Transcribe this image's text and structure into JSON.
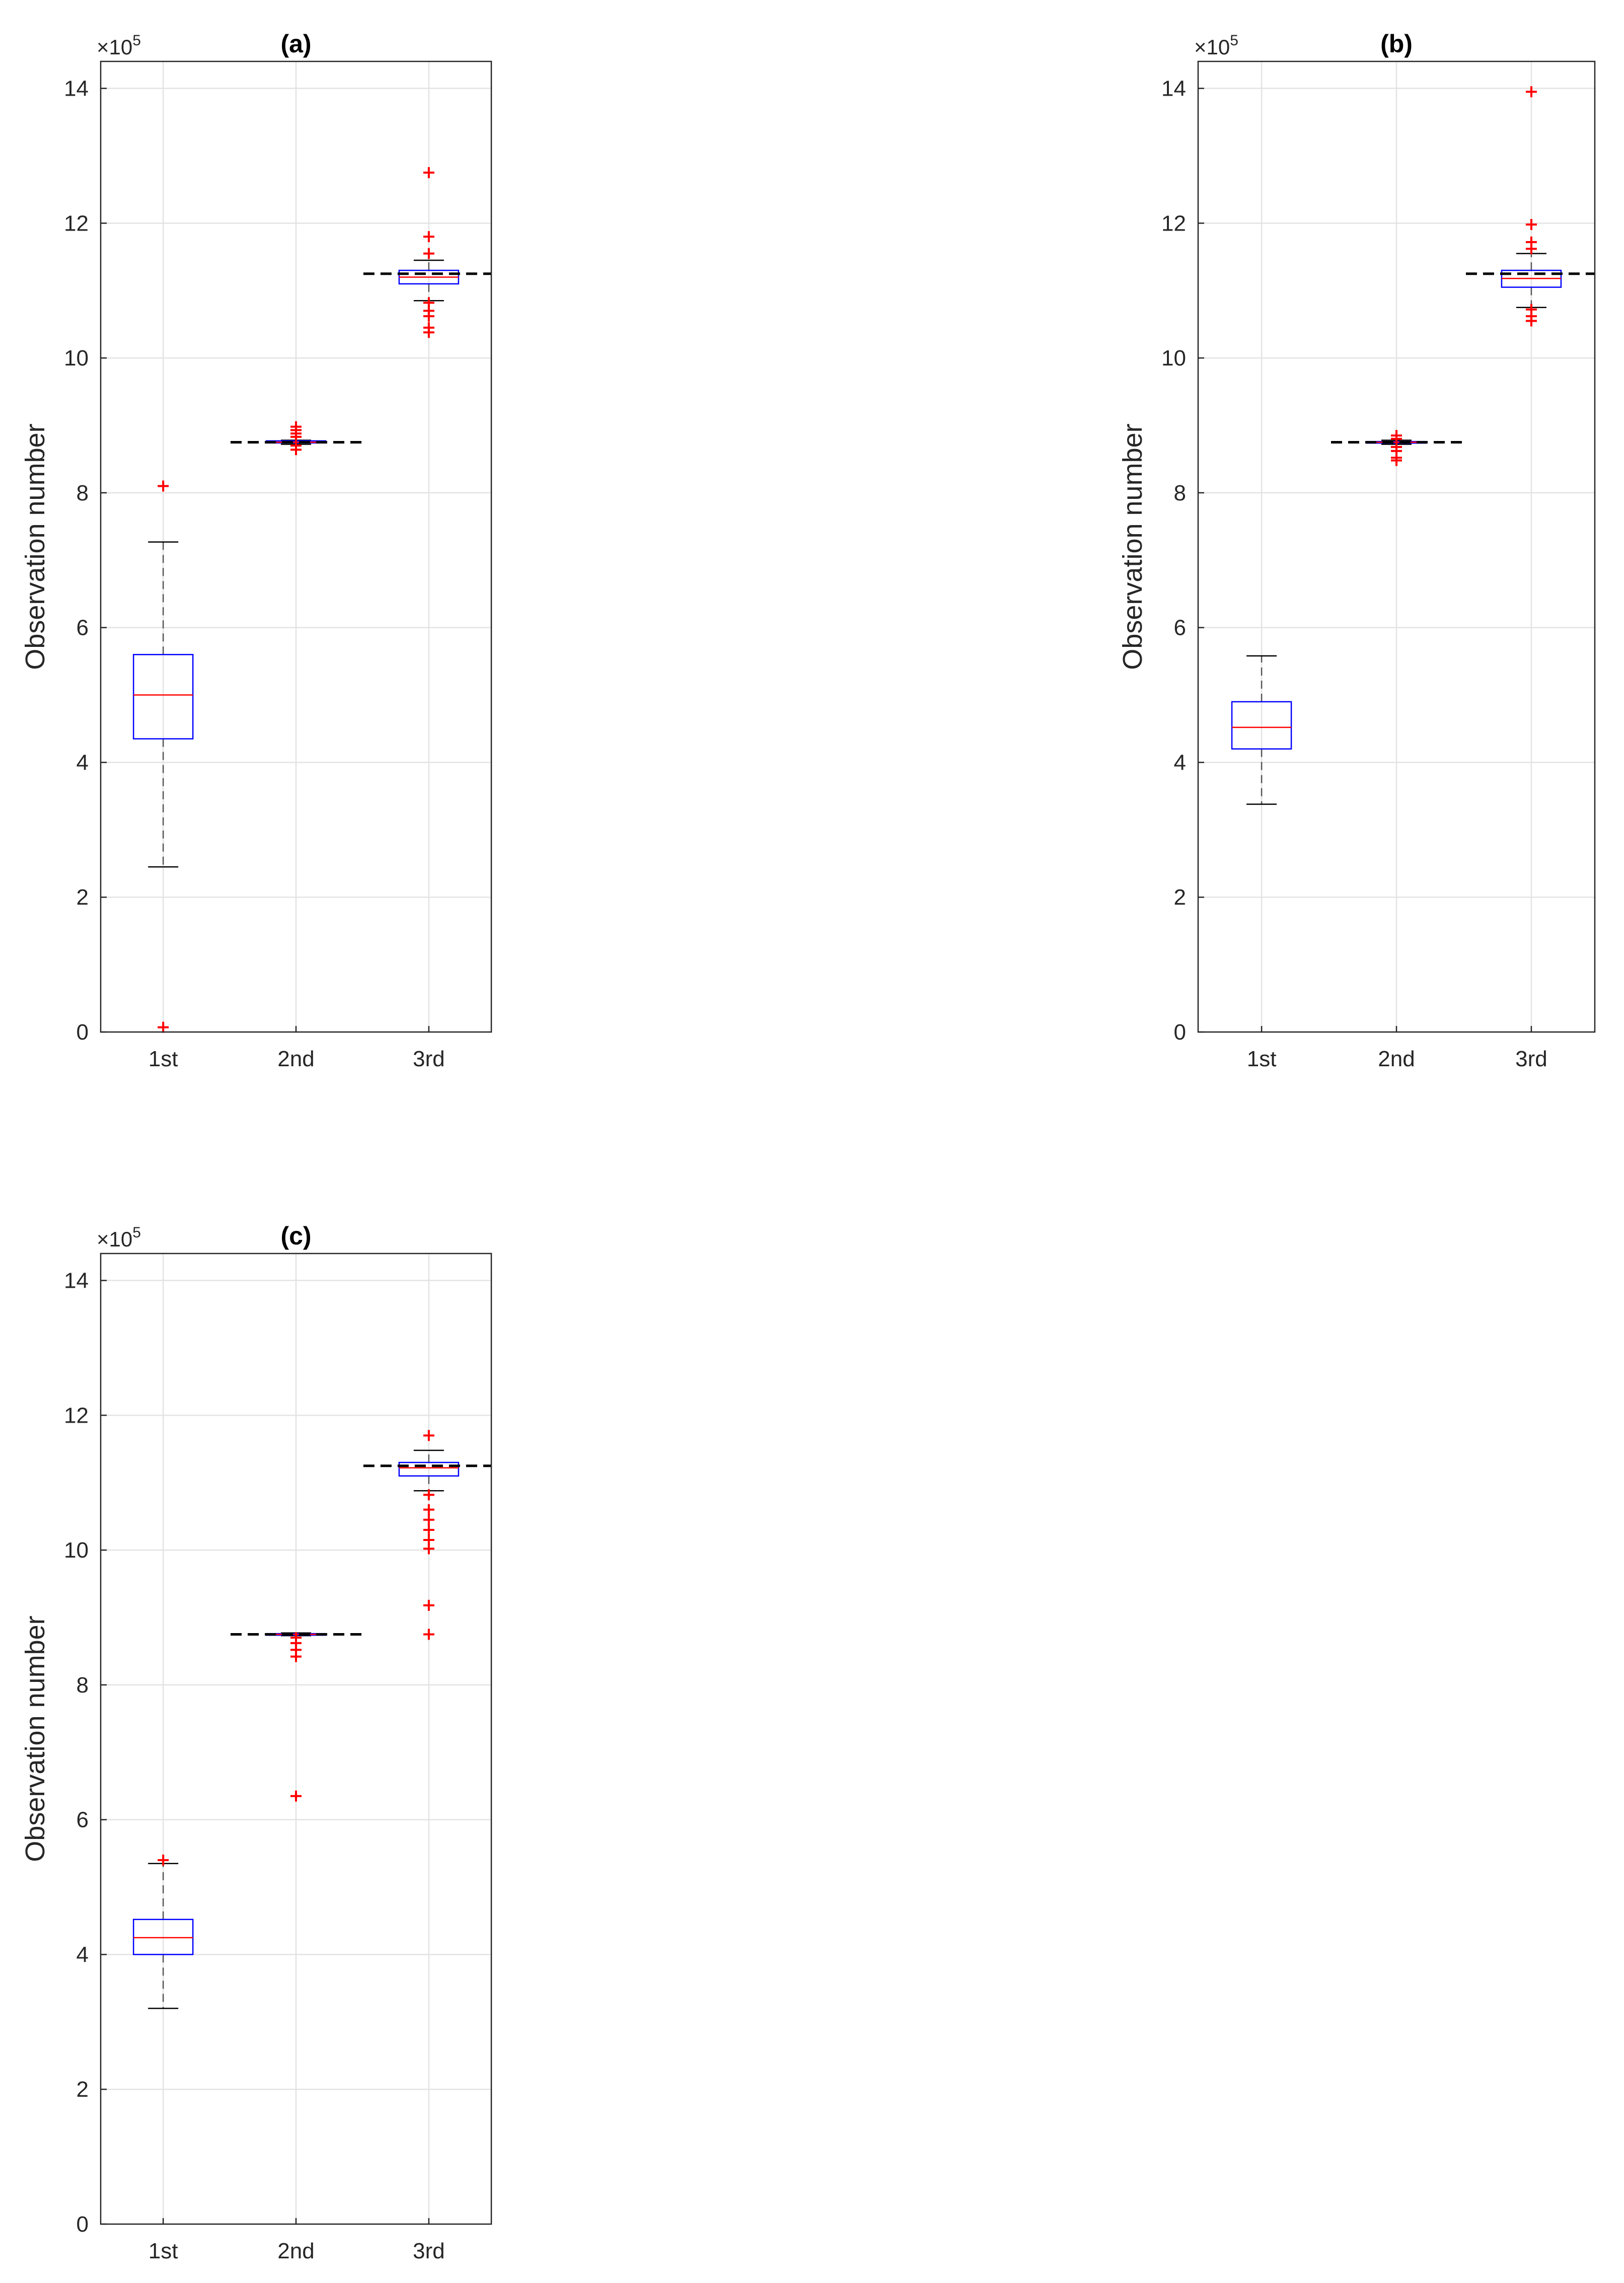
{
  "chart_data": [
    {
      "type": "box",
      "title": "(a)",
      "xlabel": "",
      "ylabel": "Observation number",
      "exponent_label": "×10",
      "exponent_power": "5",
      "categories": [
        "1st",
        "2nd",
        "3rd"
      ],
      "ylim": [
        0,
        14.4
      ],
      "yticks": [
        "0",
        "2",
        "4",
        "6",
        "8",
        "10",
        "12",
        "14"
      ],
      "grid": true,
      "reference_lines": [
        8.75,
        11.25
      ],
      "boxes": [
        {
          "category": "1st",
          "whisker_low": 2.45,
          "q1": 4.35,
          "median": 5.0,
          "q3": 5.6,
          "whisker_high": 7.27,
          "outliers": [
            8.1,
            0.07
          ]
        },
        {
          "category": "2nd",
          "whisker_low": 8.72,
          "q1": 8.74,
          "median": 8.75,
          "q3": 8.77,
          "whisker_high": 8.78,
          "outliers": [
            8.98,
            8.93,
            8.88,
            8.83,
            8.7,
            8.64
          ]
        },
        {
          "category": "3rd",
          "whisker_low": 10.85,
          "q1": 11.1,
          "median": 11.2,
          "q3": 11.3,
          "whisker_high": 11.45,
          "outliers": [
            12.75,
            11.8,
            11.55,
            10.82,
            10.7,
            10.62,
            10.45,
            10.38
          ]
        }
      ]
    },
    {
      "type": "box",
      "title": "(b)",
      "xlabel": "",
      "ylabel": "Observation number",
      "exponent_label": "×10",
      "exponent_power": "5",
      "categories": [
        "1st",
        "2nd",
        "3rd"
      ],
      "ylim": [
        0,
        14.4
      ],
      "yticks": [
        "0",
        "2",
        "4",
        "6",
        "8",
        "10",
        "12",
        "14"
      ],
      "grid": true,
      "reference_lines": [
        8.75,
        11.25
      ],
      "boxes": [
        {
          "category": "1st",
          "whisker_low": 3.38,
          "q1": 4.2,
          "median": 4.52,
          "q3": 4.9,
          "whisker_high": 5.58,
          "outliers": []
        },
        {
          "category": "2nd",
          "whisker_low": 8.72,
          "q1": 8.74,
          "median": 8.75,
          "q3": 8.76,
          "whisker_high": 8.78,
          "outliers": [
            8.85,
            8.8,
            8.68,
            8.62,
            8.52,
            8.48
          ]
        },
        {
          "category": "3rd",
          "whisker_low": 10.75,
          "q1": 11.05,
          "median": 11.18,
          "q3": 11.3,
          "whisker_high": 11.55,
          "outliers": [
            13.95,
            11.98,
            11.72,
            11.62,
            10.72,
            10.62,
            10.55
          ]
        }
      ]
    },
    {
      "type": "box",
      "title": "(c)",
      "xlabel": "",
      "ylabel": "Observation number",
      "exponent_label": "×10",
      "exponent_power": "5",
      "categories": [
        "1st",
        "2nd",
        "3rd"
      ],
      "ylim": [
        0,
        14.4
      ],
      "yticks": [
        "0",
        "2",
        "4",
        "6",
        "8",
        "10",
        "12",
        "14"
      ],
      "grid": true,
      "reference_lines": [
        8.75,
        11.25
      ],
      "boxes": [
        {
          "category": "1st",
          "whisker_low": 3.2,
          "q1": 4.0,
          "median": 4.25,
          "q3": 4.52,
          "whisker_high": 5.35,
          "outliers": [
            5.4
          ]
        },
        {
          "category": "2nd",
          "whisker_low": 8.73,
          "q1": 8.74,
          "median": 8.75,
          "q3": 8.76,
          "whisker_high": 8.77,
          "outliers": [
            8.7,
            8.62,
            8.52,
            8.42,
            6.35
          ]
        },
        {
          "category": "3rd",
          "whisker_low": 10.88,
          "q1": 11.1,
          "median": 11.22,
          "q3": 11.3,
          "whisker_high": 11.48,
          "outliers": [
            11.7,
            10.82,
            10.6,
            10.45,
            10.3,
            10.15,
            10.02,
            9.18,
            8.75
          ]
        }
      ]
    }
  ]
}
